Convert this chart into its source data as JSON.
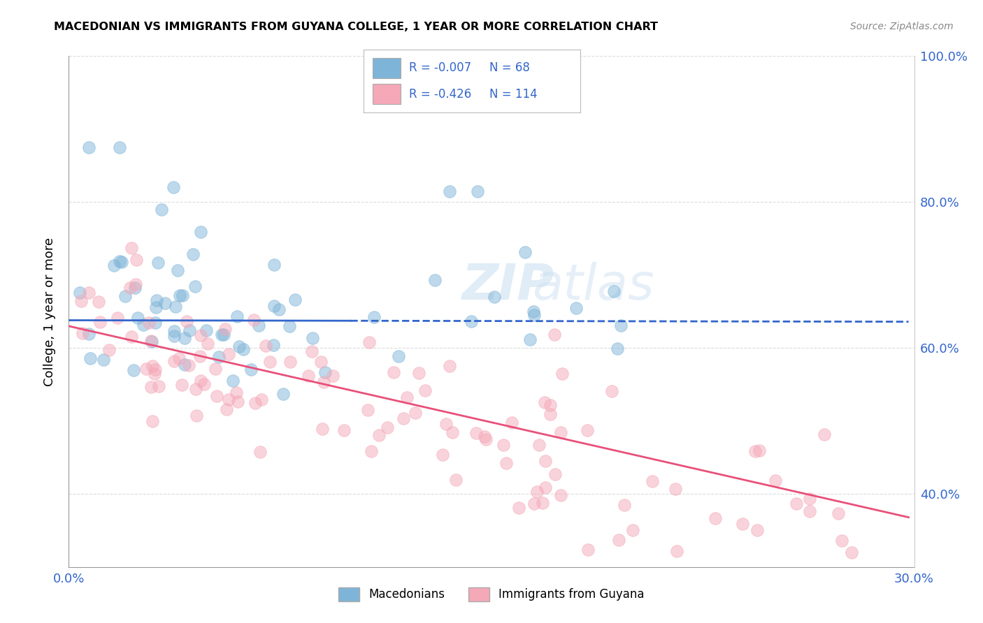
{
  "title": "MACEDONIAN VS IMMIGRANTS FROM GUYANA COLLEGE, 1 YEAR OR MORE CORRELATION CHART",
  "source": "Source: ZipAtlas.com",
  "ylabel": "College, 1 year or more",
  "legend_label1": "Macedonians",
  "legend_label2": "Immigrants from Guyana",
  "R1": -0.007,
  "N1": 68,
  "R2": -0.426,
  "N2": 114,
  "xlim": [
    0.0,
    0.3
  ],
  "ylim": [
    0.3,
    1.0
  ],
  "ytick_vals": [
    0.4,
    0.6,
    0.8,
    1.0
  ],
  "ytick_labels": [
    "40.0%",
    "60.0%",
    "80.0%",
    "100.0%"
  ],
  "xtick_vals": [
    0.0,
    0.3
  ],
  "xtick_labels": [
    "0.0%",
    "30.0%"
  ],
  "color_blue": "#7EB4D8",
  "color_pink": "#F4A8B8",
  "line_blue": "#3366CC",
  "line_pink": "#E8507A",
  "background_color": "#ffffff",
  "grid_color": "#cccccc",
  "watermark": "ZIPatlas"
}
